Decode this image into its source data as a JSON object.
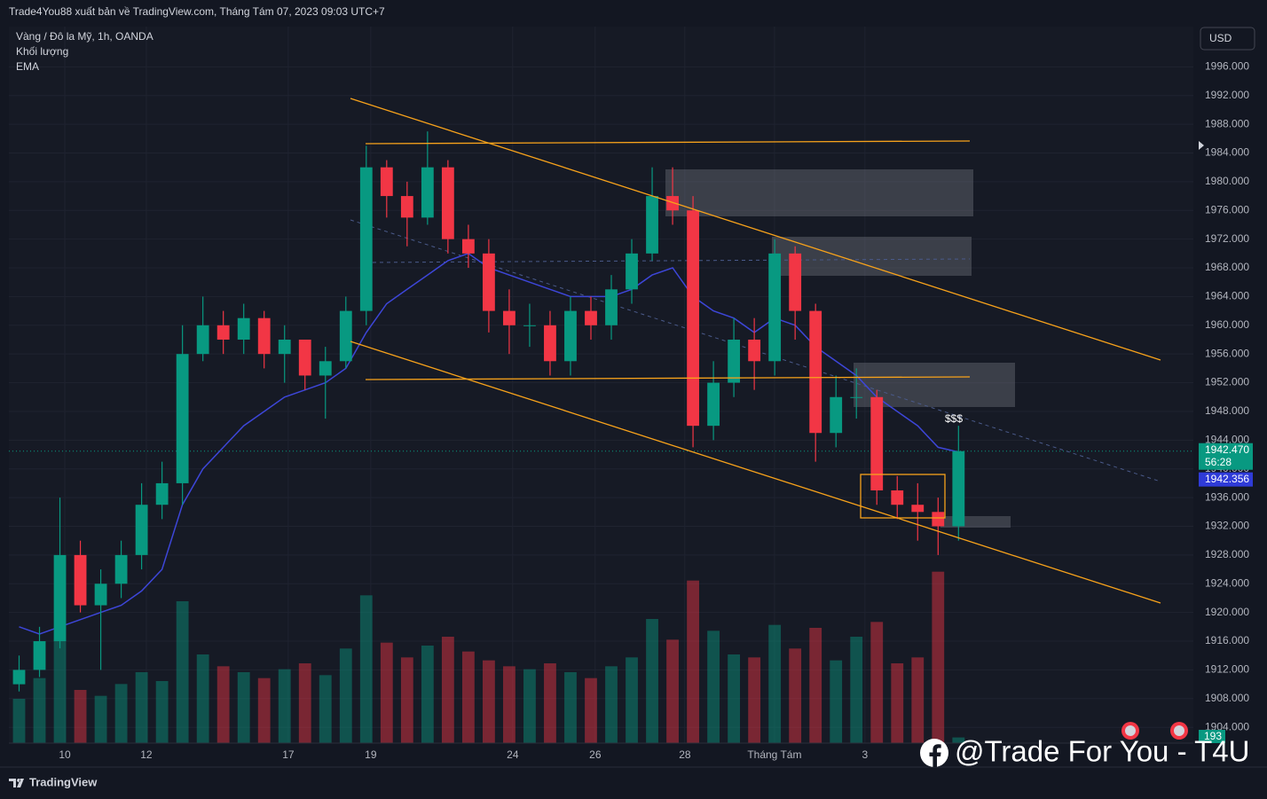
{
  "header": "Trade4You88 xuất bản về TradingView.com, Tháng Tám 07, 2023 09:03 UTC+7",
  "legend": [
    "Vàng / Đô la Mỹ, 1h, OANDA",
    "Khối lượng",
    "EMA"
  ],
  "currency_button": "USD",
  "annotation": "$$$",
  "watermark": "@Trade For You - T4U",
  "footer_brand": "TradingView",
  "chart_data": {
    "type": "candlestick",
    "xlim": [
      -0.5,
      57.5
    ],
    "xticks": [
      {
        "value": 2.24,
        "label": "10"
      },
      {
        "value": 6.23,
        "label": "12"
      },
      {
        "value": 13.18,
        "label": "17"
      },
      {
        "value": 17.22,
        "label": "19"
      },
      {
        "value": 24.17,
        "label": "24"
      },
      {
        "value": 28.21,
        "label": "26"
      },
      {
        "value": 32.6,
        "label": "28"
      },
      {
        "value": 36.99,
        "label": "Tháng Tám"
      },
      {
        "value": 41.42,
        "label": "3"
      }
    ],
    "ylim": [
      1901.8,
      2001.6
    ],
    "yticks": [
      {
        "value": 1904,
        "label": "1904.000"
      },
      {
        "value": 1908,
        "label": "1908.000"
      },
      {
        "value": 1912,
        "label": "1912.000"
      },
      {
        "value": 1916,
        "label": "1916.000"
      },
      {
        "value": 1920,
        "label": "1920.000"
      },
      {
        "value": 1924,
        "label": "1924.000"
      },
      {
        "value": 1928,
        "label": "1928.000"
      },
      {
        "value": 1932,
        "label": "1932.000"
      },
      {
        "value": 1936,
        "label": "1936.000"
      },
      {
        "value": 1940,
        "label": "1940.000"
      },
      {
        "value": 1944,
        "label": "1944.000"
      },
      {
        "value": 1948,
        "label": "1948.000"
      },
      {
        "value": 1952,
        "label": "1952.000"
      },
      {
        "value": 1956,
        "label": "1956.000"
      },
      {
        "value": 1960,
        "label": "1960.000"
      },
      {
        "value": 1964,
        "label": "1964.000"
      },
      {
        "value": 1968,
        "label": "1968.000"
      },
      {
        "value": 1972,
        "label": "1972.000"
      },
      {
        "value": 1976,
        "label": "1976.000"
      },
      {
        "value": 1980,
        "label": "1980.000"
      },
      {
        "value": 1984,
        "label": "1984.000"
      },
      {
        "value": 1988,
        "label": "1988.000"
      },
      {
        "value": 1992,
        "label": "1992.000"
      },
      {
        "value": 1996,
        "label": "1996.000"
      }
    ],
    "grid": true,
    "up_color": "#089981",
    "down_color": "#f23645",
    "candles": {
      "open": [
        1910,
        1912,
        1916,
        1928,
        1921,
        1924,
        1928,
        1935,
        1938,
        1956,
        1960,
        1958,
        1961,
        1956,
        1958,
        1953,
        1955,
        1962,
        1982,
        1978,
        1975,
        1982,
        1972,
        1970,
        1962,
        1960,
        1960,
        1955,
        1962,
        1960,
        1965,
        1970,
        1978,
        1976,
        1946,
        1952,
        1958,
        1955,
        1970,
        1962,
        1945,
        1950,
        1950,
        1937,
        1935,
        1934,
        1932
      ],
      "high": [
        1914,
        1918,
        1936,
        1930,
        1926,
        1930,
        1938,
        1941,
        1960,
        1964,
        1962,
        1963,
        1962,
        1960,
        1958,
        1957,
        1964,
        1985,
        1983,
        1980,
        1987,
        1983,
        1974,
        1972,
        1965,
        1963,
        1962,
        1964,
        1964,
        1967,
        1972,
        1982,
        1982,
        1978,
        1955,
        1961,
        1961,
        1972,
        1971,
        1963,
        1953,
        1954,
        1951,
        1939,
        1938,
        1936,
        1946
      ],
      "low": [
        1909,
        1911,
        1915,
        1920,
        1912,
        1922,
        1926,
        1933,
        1935,
        1955,
        1956,
        1956,
        1954,
        1952,
        1951,
        1947,
        1954,
        1960,
        1975,
        1971,
        1974,
        1970,
        1968,
        1959,
        1956,
        1957,
        1953,
        1953,
        1958,
        1958,
        1963,
        1969,
        1974,
        1943,
        1944,
        1950,
        1951,
        1953,
        1958,
        1941,
        1943,
        1947,
        1935,
        1933,
        1930,
        1928,
        1930
      ],
      "close": [
        1912,
        1916,
        1928,
        1921,
        1924,
        1928,
        1935,
        1938,
        1956,
        1960,
        1958,
        1961,
        1956,
        1958,
        1953,
        1955,
        1962,
        1982,
        1978,
        1975,
        1982,
        1972,
        1970,
        1962,
        1960,
        1960,
        1955,
        1962,
        1960,
        1965,
        1970,
        1978,
        1976,
        1946,
        1952,
        1958,
        1955,
        1970,
        1962,
        1945,
        1950,
        1950,
        1937,
        1935,
        1934,
        1932,
        1942.47
      ]
    },
    "volume": {
      "vlim": [
        0,
        6000
      ],
      "values": [
        1500,
        2200,
        3500,
        1800,
        1600,
        2000,
        2400,
        2100,
        4800,
        3000,
        2600,
        2400,
        2200,
        2500,
        2700,
        2300,
        3200,
        5000,
        3400,
        2900,
        3300,
        3600,
        3100,
        2800,
        2600,
        2500,
        2700,
        2400,
        2200,
        2600,
        2900,
        4200,
        3500,
        5500,
        3800,
        3000,
        2900,
        4000,
        3200,
        3900,
        2800,
        3600,
        4100,
        2700,
        2900,
        5800,
        193
      ]
    },
    "ema": {
      "color": "#3d46d8",
      "values": [
        1918,
        1917,
        1918,
        1919,
        1920,
        1921,
        1923,
        1926,
        1935,
        1940,
        1943,
        1946,
        1948,
        1950,
        1951,
        1952,
        1954,
        1959,
        1963,
        1965,
        1967,
        1969,
        1970,
        1968,
        1967,
        1966,
        1965,
        1964,
        1964,
        1964,
        1965,
        1967,
        1968,
        1964,
        1962,
        1961,
        1959,
        1961,
        1960,
        1957,
        1955,
        1953,
        1950,
        1948,
        1946,
        1943,
        1942.356
      ]
    },
    "price_tags": [
      {
        "value": 1942.47,
        "label": "1942.470",
        "color": "#089981"
      },
      {
        "value": 1942.356,
        "label": "1942.356",
        "color": "#2f3bd8"
      }
    ],
    "countdown": "56:28"
  }
}
